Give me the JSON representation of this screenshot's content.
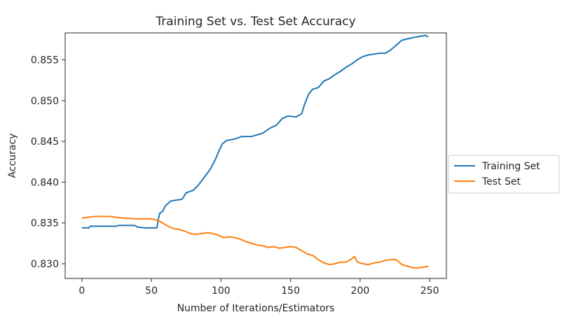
{
  "chart_data": {
    "type": "line",
    "title": "Training Set vs. Test Set Accuracy",
    "xlabel": "Number of Iterations/Estimators",
    "ylabel": "Accuracy",
    "xlim": [
      -12,
      262
    ],
    "ylim": [
      0.8282,
      0.8583
    ],
    "xticks": [
      0,
      50,
      100,
      150,
      200,
      250
    ],
    "yticks": [
      0.83,
      0.835,
      0.84,
      0.845,
      0.85,
      0.855
    ],
    "ytick_labels": [
      "0.830",
      "0.835",
      "0.840",
      "0.845",
      "0.850",
      "0.855"
    ],
    "grid": false,
    "legend_placement": "outside-right",
    "series": [
      {
        "name": "Training Set",
        "color": "#1f77b4",
        "points": [
          [
            0,
            0.8344
          ],
          [
            5,
            0.8344
          ],
          [
            6,
            0.8346
          ],
          [
            25,
            0.8346
          ],
          [
            26,
            0.8347
          ],
          [
            38,
            0.8347
          ],
          [
            40,
            0.8345
          ],
          [
            45,
            0.8344
          ],
          [
            54,
            0.8344
          ],
          [
            55,
            0.8355
          ],
          [
            56,
            0.8362
          ],
          [
            58,
            0.8364
          ],
          [
            60,
            0.8371
          ],
          [
            64,
            0.8377
          ],
          [
            68,
            0.8378
          ],
          [
            72,
            0.8379
          ],
          [
            75,
            0.8387
          ],
          [
            80,
            0.839
          ],
          [
            84,
            0.8397
          ],
          [
            88,
            0.8406
          ],
          [
            92,
            0.8415
          ],
          [
            96,
            0.8428
          ],
          [
            99,
            0.844
          ],
          [
            101,
            0.8447
          ],
          [
            104,
            0.8451
          ],
          [
            110,
            0.8453
          ],
          [
            115,
            0.8456
          ],
          [
            122,
            0.8456
          ],
          [
            126,
            0.8458
          ],
          [
            130,
            0.846
          ],
          [
            135,
            0.8466
          ],
          [
            140,
            0.847
          ],
          [
            144,
            0.8478
          ],
          [
            148,
            0.8481
          ],
          [
            154,
            0.848
          ],
          [
            158,
            0.8484
          ],
          [
            160,
            0.8495
          ],
          [
            163,
            0.8508
          ],
          [
            166,
            0.8514
          ],
          [
            170,
            0.8516
          ],
          [
            174,
            0.8524
          ],
          [
            178,
            0.8527
          ],
          [
            182,
            0.8532
          ],
          [
            186,
            0.8536
          ],
          [
            190,
            0.8541
          ],
          [
            194,
            0.8545
          ],
          [
            198,
            0.855
          ],
          [
            202,
            0.8554
          ],
          [
            206,
            0.8556
          ],
          [
            210,
            0.8557
          ],
          [
            214,
            0.8558
          ],
          [
            218,
            0.8558
          ],
          [
            222,
            0.8562
          ],
          [
            226,
            0.8568
          ],
          [
            230,
            0.8574
          ],
          [
            235,
            0.8576
          ],
          [
            240,
            0.8578
          ],
          [
            244,
            0.8579
          ],
          [
            247,
            0.858
          ],
          [
            249,
            0.8578
          ]
        ]
      },
      {
        "name": "Test Set",
        "color": "#ff7f0e",
        "points": [
          [
            0,
            0.8356
          ],
          [
            5,
            0.8357
          ],
          [
            10,
            0.8358
          ],
          [
            20,
            0.8358
          ],
          [
            24,
            0.8357
          ],
          [
            30,
            0.8356
          ],
          [
            40,
            0.8355
          ],
          [
            50,
            0.8355
          ],
          [
            55,
            0.8353
          ],
          [
            58,
            0.835
          ],
          [
            62,
            0.8346
          ],
          [
            66,
            0.8343
          ],
          [
            70,
            0.8342
          ],
          [
            74,
            0.834
          ],
          [
            78,
            0.8337
          ],
          [
            82,
            0.8336
          ],
          [
            86,
            0.8337
          ],
          [
            90,
            0.8338
          ],
          [
            94,
            0.8337
          ],
          [
            98,
            0.8335
          ],
          [
            102,
            0.8332
          ],
          [
            106,
            0.8333
          ],
          [
            110,
            0.8332
          ],
          [
            114,
            0.833
          ],
          [
            118,
            0.8327
          ],
          [
            122,
            0.8325
          ],
          [
            126,
            0.8323
          ],
          [
            130,
            0.8322
          ],
          [
            134,
            0.832
          ],
          [
            138,
            0.8321
          ],
          [
            142,
            0.8319
          ],
          [
            146,
            0.832
          ],
          [
            150,
            0.8321
          ],
          [
            154,
            0.832
          ],
          [
            158,
            0.8316
          ],
          [
            162,
            0.8312
          ],
          [
            166,
            0.831
          ],
          [
            170,
            0.8305
          ],
          [
            174,
            0.8301
          ],
          [
            178,
            0.8299
          ],
          [
            182,
            0.83
          ],
          [
            186,
            0.8302
          ],
          [
            190,
            0.8302
          ],
          [
            194,
            0.8306
          ],
          [
            196,
            0.8309
          ],
          [
            198,
            0.8302
          ],
          [
            202,
            0.83
          ],
          [
            206,
            0.8299
          ],
          [
            210,
            0.8301
          ],
          [
            214,
            0.8302
          ],
          [
            218,
            0.8304
          ],
          [
            222,
            0.8305
          ],
          [
            226,
            0.8305
          ],
          [
            230,
            0.8299
          ],
          [
            234,
            0.8297
          ],
          [
            238,
            0.8295
          ],
          [
            242,
            0.8295
          ],
          [
            246,
            0.8296
          ],
          [
            249,
            0.8297
          ]
        ]
      }
    ]
  }
}
